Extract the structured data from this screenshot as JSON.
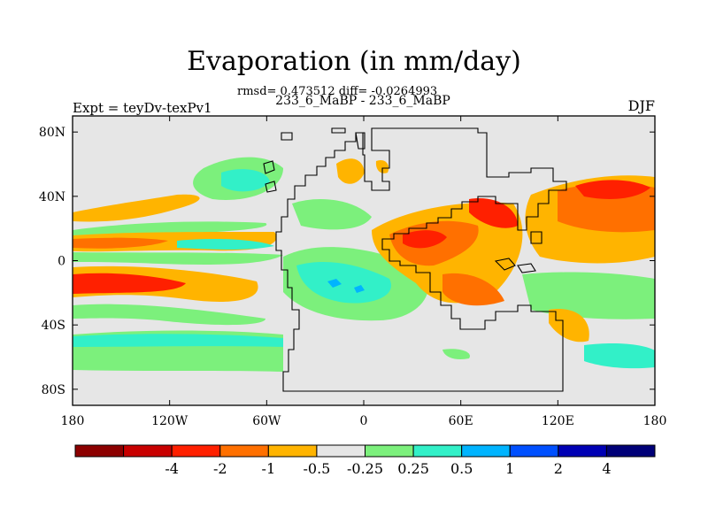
{
  "title": "Evaporation (in mm/day)",
  "stats": "rmsd= 0.473512 diff= -0.0264993",
  "subtitle": "233_6_MaBP - 233_6_MaBP",
  "experiment": "Expt = teyDv-texPv1",
  "season": "DJF",
  "map": {
    "lon_range": [
      -180,
      180
    ],
    "lat_range": [
      -90,
      90
    ],
    "x_ticks": [
      "180",
      "120W",
      "60W",
      "0",
      "60E",
      "120E",
      "180"
    ],
    "y_ticks": [
      "80N",
      "40N",
      "0",
      "40S",
      "80S"
    ],
    "background_color": "#e6e6e6"
  },
  "colorbar": {
    "colors": [
      "#8c0000",
      "#c80000",
      "#ff2000",
      "#ff7000",
      "#ffb400",
      "#e6e6e6",
      "#7cf07c",
      "#32f0c8",
      "#00b4ff",
      "#0050ff",
      "#0000b4",
      "#000078"
    ],
    "labels": [
      "-4",
      "-2",
      "-1",
      "-0.5",
      "-0.25",
      "0.25",
      "0.5",
      "1",
      "2",
      "4"
    ]
  }
}
